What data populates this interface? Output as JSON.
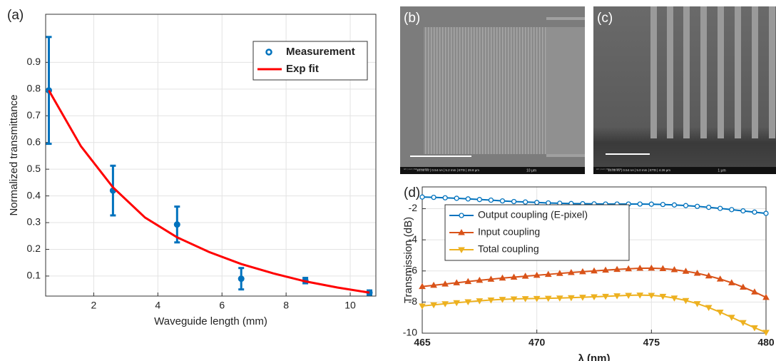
{
  "chart_data": [
    {
      "type": "scatter",
      "panel_label": "(a)",
      "xlabel": "Waveguide length (mm)",
      "ylabel": "Normalized transmittance",
      "xlim": [
        0.5,
        10.8
      ],
      "ylim": [
        0.025,
        1.08
      ],
      "xticks": [
        2,
        4,
        6,
        8,
        10
      ],
      "yticks": [
        0.1,
        0.2,
        0.3,
        0.4,
        0.5,
        0.6,
        0.7,
        0.8,
        0.9
      ],
      "grid": true,
      "legend": "upper right",
      "series": [
        {
          "name": "Measurement",
          "color": "#0072bd",
          "mode": "errorbar",
          "x": [
            0.6,
            2.6,
            4.6,
            6.6,
            8.6,
            10.6
          ],
          "values": [
            0.795,
            0.42,
            0.293,
            0.09,
            0.083,
            0.038
          ],
          "errors": [
            0.2,
            0.093,
            0.067,
            0.04,
            0.01,
            0.008
          ]
        },
        {
          "name": "Exp fit",
          "color": "#ff0000",
          "mode": "line",
          "x": [
            0.6,
            1.6,
            2.6,
            3.6,
            4.6,
            5.6,
            6.6,
            7.6,
            8.6,
            9.6,
            10.6
          ],
          "values": [
            0.795,
            0.586,
            0.432,
            0.319,
            0.245,
            0.19,
            0.145,
            0.11,
            0.08,
            0.057,
            0.038
          ]
        }
      ]
    },
    {
      "type": "line",
      "panel_label": "(d)",
      "xlabel": "λ (nm)",
      "ylabel": "Transmission (dB)",
      "xlim": [
        465,
        480
      ],
      "ylim": [
        -10,
        -0.6
      ],
      "xticks": [
        465,
        470,
        475,
        480
      ],
      "yticks": [
        -2,
        -4,
        -6,
        -8,
        -10
      ],
      "grid": true,
      "legend": "upper left",
      "x": [
        465,
        465.5,
        466,
        466.5,
        467,
        467.5,
        468,
        468.5,
        469,
        469.5,
        470,
        470.5,
        471,
        471.5,
        472,
        472.5,
        473,
        473.5,
        474,
        474.5,
        475,
        475.5,
        476,
        476.5,
        477,
        477.5,
        478,
        478.5,
        479,
        479.5,
        480
      ],
      "series": [
        {
          "name": "Output coupling (E-pixel)",
          "color": "#0072bd",
          "marker": "o",
          "values": [
            -1.25,
            -1.27,
            -1.3,
            -1.33,
            -1.37,
            -1.41,
            -1.45,
            -1.5,
            -1.54,
            -1.57,
            -1.6,
            -1.63,
            -1.65,
            -1.67,
            -1.68,
            -1.69,
            -1.7,
            -1.7,
            -1.7,
            -1.7,
            -1.71,
            -1.73,
            -1.76,
            -1.8,
            -1.85,
            -1.91,
            -1.98,
            -2.06,
            -2.14,
            -2.22,
            -2.3
          ]
        },
        {
          "name": "Input coupling",
          "color": "#d95319",
          "marker": "^",
          "values": [
            -7.0,
            -6.92,
            -6.84,
            -6.76,
            -6.68,
            -6.6,
            -6.53,
            -6.46,
            -6.4,
            -6.34,
            -6.28,
            -6.22,
            -6.16,
            -6.1,
            -6.05,
            -6.0,
            -5.95,
            -5.9,
            -5.86,
            -5.83,
            -5.82,
            -5.85,
            -5.92,
            -6.02,
            -6.15,
            -6.32,
            -6.52,
            -6.76,
            -7.04,
            -7.35,
            -7.7
          ]
        },
        {
          "name": "Total coupling",
          "color": "#edb120",
          "marker": "v",
          "values": [
            -8.25,
            -8.18,
            -8.11,
            -8.04,
            -7.98,
            -7.92,
            -7.87,
            -7.83,
            -7.8,
            -7.78,
            -7.77,
            -7.76,
            -7.74,
            -7.72,
            -7.69,
            -7.66,
            -7.63,
            -7.6,
            -7.57,
            -7.55,
            -7.57,
            -7.63,
            -7.74,
            -7.9,
            -8.1,
            -8.35,
            -8.65,
            -8.98,
            -9.32,
            -9.65,
            -9.95
          ]
        }
      ]
    }
  ],
  "images": [
    {
      "label": "(b)",
      "info_head": "HV | curr | WD | det | HFW",
      "info_values": "10.00 kV | 0.54 nA | 5.2 mm | ETD | 29.8 μm",
      "scale": "10 μm"
    },
    {
      "label": "(c)",
      "info_head": "HV | curr | WD | det | HFW",
      "info_values": "10.00 kV | 0.54 nA | 5.0 mm | ETD | 4.26 μm",
      "scale": "1 μm"
    }
  ]
}
